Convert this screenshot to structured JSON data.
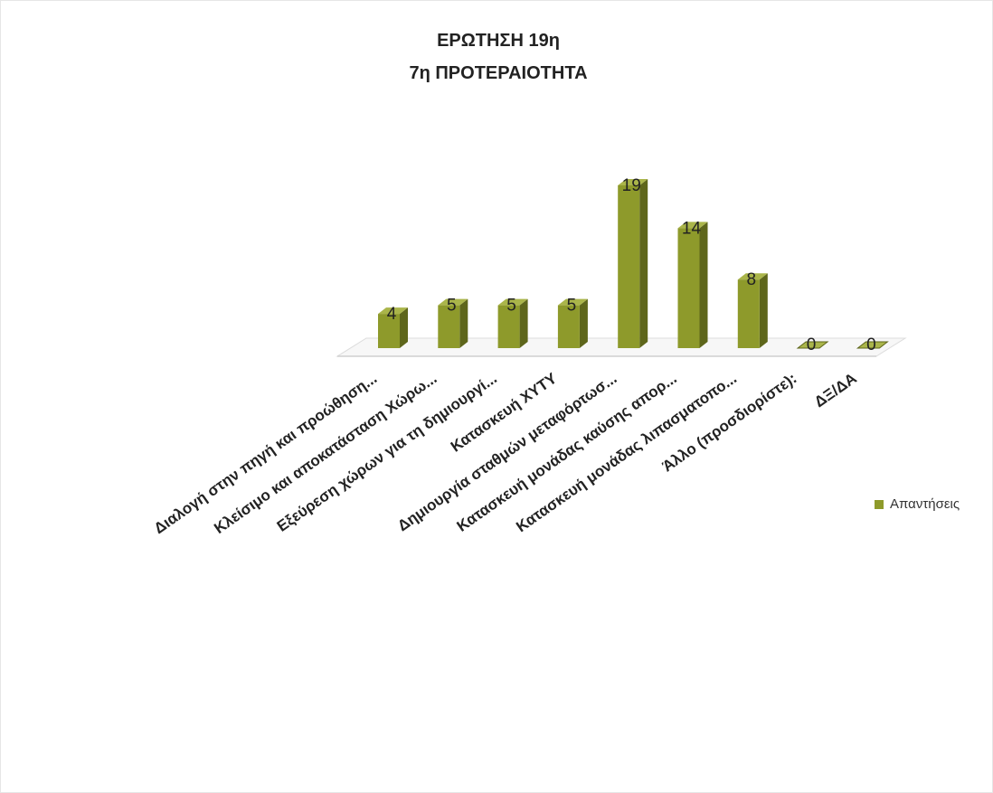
{
  "chart_data": {
    "type": "bar",
    "title": "ΕΡΩΤΗΣΗ 19η",
    "subtitle": "7η ΠΡΟΤΕΡΑΙΟΤΗΤΑ",
    "categories": [
      "Διαλογή στην πηγή και προώθηση...",
      "Κλείσιμο και αποκατάσταση Χώρω...",
      "Εξεύρεση χώρων για τη δημιουργί...",
      "Κατασκευή ΧΥΤΥ",
      "Δημιουργία σταθμών μεταφόρτωσ...",
      "Κατασκευή μονάδας καύσης απορ...",
      "Κατασκευή μονάδας λιπασματοπο...",
      "Άλλο (προσδιορίστε):",
      "ΔΞ/ΔΑ"
    ],
    "series": [
      {
        "name": "Απαντήσεις",
        "values": [
          4,
          5,
          5,
          5,
          19,
          14,
          8,
          0,
          0
        ]
      }
    ],
    "data_labels": [
      "4",
      "5",
      "5",
      "5",
      "19",
      "14",
      "8",
      "0",
      "0"
    ],
    "ylim": [
      0,
      20
    ],
    "legend_position": "right",
    "grid": false,
    "colors": {
      "bar_front": "#8e9a2b",
      "bar_side": "#5e661b",
      "bar_top": "#aab54a",
      "floor": "#dcdcdc"
    }
  }
}
